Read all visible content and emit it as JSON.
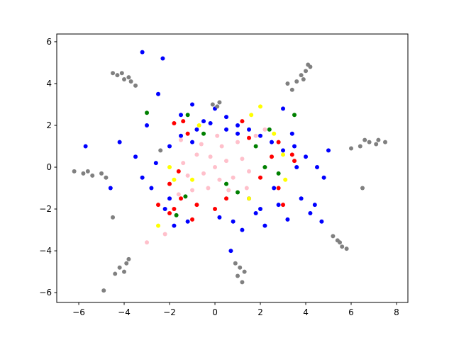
{
  "chart_data": {
    "type": "scatter",
    "xlim": [
      -6.97,
      8.5
    ],
    "ylim": [
      -6.47,
      6.37
    ],
    "xticks": [
      {
        "value": -6,
        "label": "−6"
      },
      {
        "value": -4,
        "label": "−4"
      },
      {
        "value": -2,
        "label": "−2"
      },
      0,
      2,
      4,
      6,
      8
    ],
    "yticks": [
      {
        "value": -6,
        "label": "−6"
      },
      {
        "value": -4,
        "label": "−4"
      },
      {
        "value": -2,
        "label": "−2"
      },
      0,
      2,
      4,
      6
    ],
    "grid": false,
    "series": [
      {
        "color": "#0000ff",
        "x": [
          -3,
          -2.5,
          -2,
          -1.5,
          -1,
          -0.5,
          0,
          0.5,
          1,
          1.5,
          2,
          2.5,
          3,
          3.5,
          4,
          4.5,
          -2.8,
          -2.2,
          -1.2,
          0.8,
          1.8,
          2.8,
          3.8,
          4.8,
          -3.5,
          -4.2,
          -4.6,
          -2.6,
          -1.8,
          0.2,
          1.2,
          2.2,
          3.2,
          4.2,
          -0.8,
          0.5,
          1.5,
          2.6,
          3.6,
          -1.5,
          -3.2,
          5,
          4.4,
          3,
          -2,
          -1,
          1,
          2,
          3.4,
          -0.2,
          -3.2,
          -2.3,
          -5.7,
          0.7,
          4.7
        ],
        "values": [
          2,
          3.5,
          1,
          2.5,
          3,
          2.2,
          2.8,
          2.4,
          2,
          1.8,
          1.5,
          1.2,
          0.8,
          1,
          0.5,
          0,
          -1,
          -2,
          -2.6,
          -2.6,
          -2.2,
          -1.8,
          -1.5,
          -0.5,
          0.5,
          1.2,
          -1,
          0.2,
          -2.8,
          -2.4,
          -3,
          -2.8,
          -2.5,
          -2.2,
          1.8,
          1.8,
          -1.5,
          -1,
          0,
          1.5,
          -0.5,
          0.8,
          -1.8,
          2.8,
          -1.5,
          1.2,
          1.6,
          -2,
          1.6,
          2.1,
          5.5,
          5.2,
          1,
          -4,
          -2.6
        ]
      },
      {
        "color": "#808080",
        "x": [
          -4.3,
          -4,
          -3.7,
          -3.5,
          -4.1,
          -3.8,
          -4.5,
          3.8,
          4,
          4.2,
          3.9,
          4.1,
          3.6,
          6.4,
          6.8,
          7.1,
          6.6,
          7.2,
          6,
          7.5,
          -5.8,
          -5.4,
          -5,
          -5.6,
          -4.8,
          -6.2,
          -4.2,
          -3.9,
          -4,
          -3.8,
          -4.4,
          1.1,
          1,
          1.2,
          0.9,
          1.3,
          5.4,
          5.6,
          5.2,
          5.8,
          5.5,
          -0.1,
          0.1,
          0.2,
          -4.9,
          6.5,
          3.2,
          -2.4,
          -4.5,
          3.4
        ],
        "values": [
          4.4,
          4.2,
          4.1,
          3.9,
          4.5,
          4.3,
          4.5,
          4.4,
          4.6,
          4.8,
          4.2,
          4.9,
          4.1,
          1,
          1.2,
          1.1,
          1.3,
          1.3,
          0.9,
          1.2,
          -0.3,
          -0.4,
          -0.3,
          -0.2,
          -0.5,
          -0.2,
          -4.8,
          -4.6,
          -5,
          -4.4,
          -5.1,
          -4.8,
          -5.2,
          -5.5,
          -4.6,
          -5,
          -3.5,
          -3.8,
          -3.3,
          -3.9,
          -3.6,
          3,
          2.9,
          3.1,
          -5.9,
          -1,
          4,
          0.8,
          -2.4,
          3.7
        ]
      },
      {
        "color": "#ff0000",
        "x": [
          -1.8,
          -1.2,
          2.5,
          3.4,
          -1.8,
          -2,
          -1.5,
          1.5,
          2.8,
          3,
          -1.4,
          -0.8,
          0.5,
          2,
          3.5,
          -2,
          -1.6,
          2.8,
          -1,
          0,
          1.2,
          -2.5
        ],
        "values": [
          2.1,
          1.6,
          0.5,
          0.6,
          -2,
          -2.2,
          -1.5,
          1.4,
          -1,
          -1.8,
          2.2,
          -1.8,
          -1.5,
          -0.5,
          0.3,
          -0.8,
          -0.2,
          1.2,
          -2.5,
          -2,
          2.2,
          -1.8
        ]
      },
      {
        "color": "#008000",
        "x": [
          -0.5,
          1.8,
          2.2,
          -1.3,
          0.5,
          2.4,
          -1.2,
          1,
          -1.7,
          2.8,
          -3,
          3.5
        ],
        "values": [
          1.6,
          1,
          0,
          -1.4,
          -0.8,
          1.8,
          2.5,
          -1.2,
          -2.3,
          -0.3,
          2.6,
          2.5
        ]
      },
      {
        "color": "#ffff00",
        "x": [
          2,
          -2,
          2.6,
          -1.8,
          1.6,
          -1,
          3,
          -2.5,
          1.5,
          -0.7,
          3.1
        ],
        "values": [
          2.9,
          0,
          1.6,
          -0.6,
          2.5,
          -0.6,
          0.6,
          -2.8,
          -1.5,
          2,
          -0.6
        ]
      },
      {
        "color": "#ffc0cb",
        "x": [
          0,
          0.5,
          -0.5,
          0.8,
          -0.8,
          0.3,
          -0.3,
          1.2,
          -1.2,
          0.6,
          -0.6,
          1.5,
          -1.4,
          1,
          -1,
          0.2,
          -0.2,
          1.8,
          -1.5,
          -2.2,
          -3,
          2.2,
          0.1,
          1.4,
          -1.6
        ],
        "values": [
          0,
          0.3,
          -0.3,
          -0.5,
          0.6,
          1,
          -1,
          0.4,
          -0.4,
          -1.1,
          1.1,
          -0.2,
          0.2,
          1.2,
          -1.1,
          -0.6,
          0.5,
          1.5,
          1.3,
          -3.2,
          -3.6,
          1.8,
          1.5,
          -1,
          -1.3
        ]
      }
    ]
  }
}
